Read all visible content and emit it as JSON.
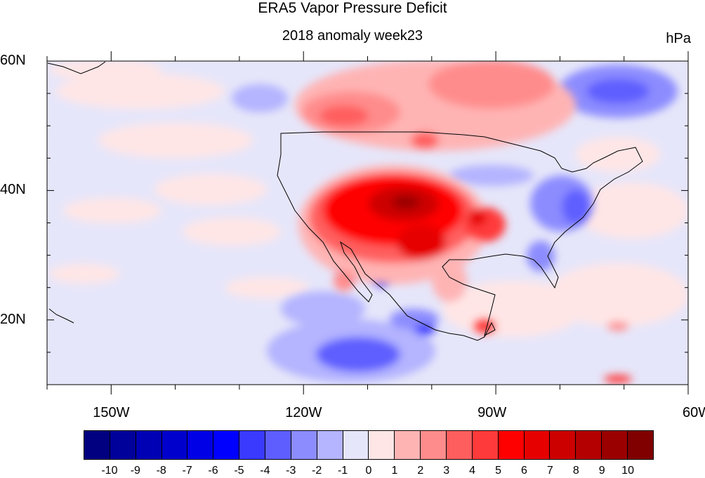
{
  "title": "ERA5 Vapor Pressure Deficit",
  "subtitle": "2018 anomaly week23",
  "units": "hPa",
  "map": {
    "projection": "cylindrical-equidistant",
    "lon_range": [
      -160,
      -60
    ],
    "lat_range": [
      10,
      60
    ],
    "lat_ticks": [
      {
        "value": 60,
        "label": "60N"
      },
      {
        "value": 40,
        "label": "40N"
      },
      {
        "value": 20,
        "label": "20N"
      }
    ],
    "lon_ticks": [
      {
        "value": -150,
        "label": "150W"
      },
      {
        "value": -120,
        "label": "120W"
      },
      {
        "value": -90,
        "label": "90W"
      },
      {
        "value": -60,
        "label": "60W"
      }
    ],
    "background_anomaly_color": "#e6e6fa"
  },
  "colorbar": {
    "labels": [
      "-10",
      "-9",
      "-8",
      "-7",
      "-6",
      "-5",
      "-4",
      "-3",
      "-2",
      "-1",
      "0",
      "1",
      "2",
      "3",
      "4",
      "5",
      "6",
      "7",
      "8",
      "9",
      "10"
    ],
    "colors": [
      "#000080",
      "#00009a",
      "#0000b4",
      "#0000cd",
      "#0000e6",
      "#0000ff",
      "#3a3aff",
      "#5e5eff",
      "#8c8cff",
      "#b4b4ff",
      "#e6e6fa",
      "#ffe6e6",
      "#ffb4b4",
      "#ff8c8c",
      "#ff5e5e",
      "#ff3a3a",
      "#ff0000",
      "#e60000",
      "#cd0000",
      "#b40000",
      "#9a0000",
      "#800000"
    ]
  }
}
